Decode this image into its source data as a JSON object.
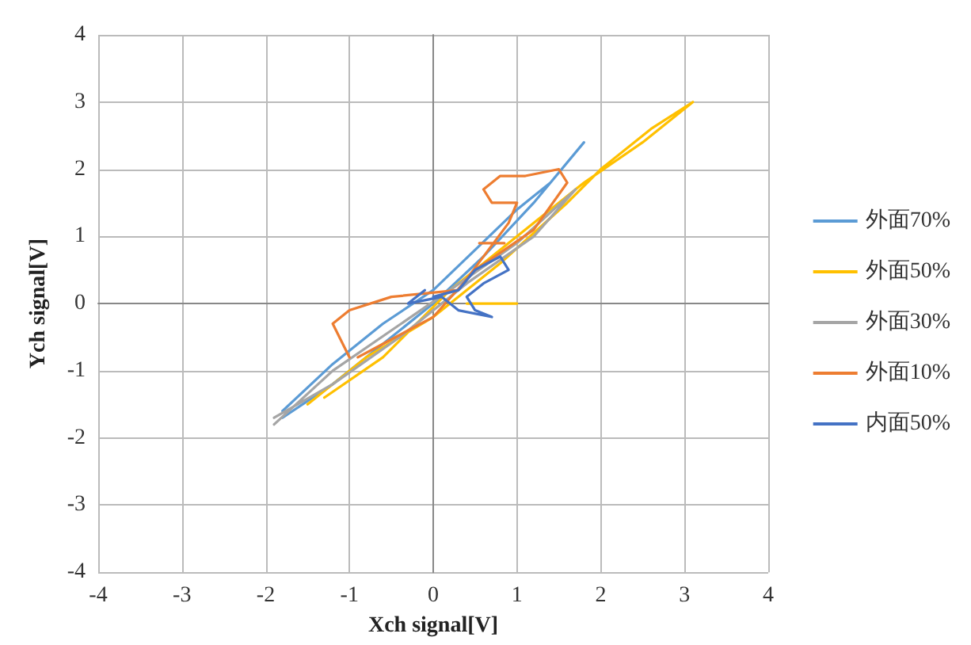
{
  "chart_data": {
    "type": "line",
    "xlabel": "Xch signal[V]",
    "ylabel": "Ych signal[V]",
    "xlim": [
      -4,
      4
    ],
    "xticks": [
      -4,
      -3,
      -2,
      -1,
      0,
      1,
      2,
      3,
      4
    ],
    "ylim": [
      -4,
      4
    ],
    "yticks": [
      -4,
      -3,
      -2,
      -1,
      0,
      1,
      2,
      3,
      4
    ],
    "grid": true,
    "legend": "right",
    "marker": "none",
    "line_style": "solid",
    "series": [
      {
        "name": "外面70%",
        "color": "#5b9bd5",
        "x": [
          -1.8,
          -1.2,
          -0.6,
          0,
          0.5,
          1.0,
          1.4,
          1.8,
          1.6,
          1.2,
          0.6,
          0,
          -0.6,
          -1.2,
          -1.8
        ],
        "values": [
          -1.6,
          -0.9,
          -0.3,
          0.2,
          0.8,
          1.4,
          1.8,
          2.4,
          2.1,
          1.5,
          0.7,
          0,
          -0.6,
          -1.2,
          -1.7
        ]
      },
      {
        "name": "外面50%",
        "color": "#ffc000",
        "x": [
          -1.5,
          -0.8,
          0,
          0.8,
          1.6,
          2.0,
          2.6,
          3.1,
          2.5,
          1.8,
          1.0,
          0.2,
          -0.6,
          -1.3,
          null,
          0.4,
          1.0
        ],
        "values": [
          -1.5,
          -0.8,
          -0.2,
          0.6,
          1.5,
          2.0,
          2.6,
          3.0,
          2.4,
          1.8,
          1.0,
          0.2,
          -0.8,
          -1.4,
          null,
          0,
          0
        ]
      },
      {
        "name": "外面30%",
        "color": "#a5a5a5",
        "x": [
          -1.9,
          -1.2,
          -0.5,
          0.2,
          1.0,
          1.7,
          1.2,
          0.4,
          -0.4,
          -1.2,
          -1.9
        ],
        "values": [
          -1.8,
          -1.0,
          -0.4,
          0.2,
          0.9,
          1.7,
          1.0,
          0.3,
          -0.5,
          -1.2,
          -1.7
        ]
      },
      {
        "name": "外面10%",
        "color": "#ed7d31",
        "x": [
          -1.0,
          -1.2,
          -1.0,
          -0.5,
          0.3,
          0.9,
          1.0,
          0.7,
          0.6,
          0.8,
          1.1,
          1.5,
          1.6,
          1.2,
          0.5,
          0,
          -0.6,
          -0.9,
          null,
          0.55,
          0.85
        ],
        "values": [
          -0.8,
          -0.3,
          -0.1,
          0.1,
          0.2,
          1.2,
          1.5,
          1.5,
          1.7,
          1.9,
          1.9,
          2.0,
          1.8,
          1.1,
          0.5,
          -0.2,
          -0.6,
          -0.8,
          null,
          0.9,
          0.9
        ]
      },
      {
        "name": "内面50%",
        "color": "#4472c4",
        "x": [
          0,
          0.3,
          0.5,
          0.8,
          0.9,
          0.6,
          0.4,
          0.5,
          0.7,
          0.3,
          0.1,
          -0.3,
          -0.1
        ],
        "values": [
          0.1,
          0.2,
          0.5,
          0.7,
          0.5,
          0.3,
          0.1,
          -0.1,
          -0.2,
          -0.1,
          0.1,
          0,
          0.2
        ]
      }
    ]
  }
}
